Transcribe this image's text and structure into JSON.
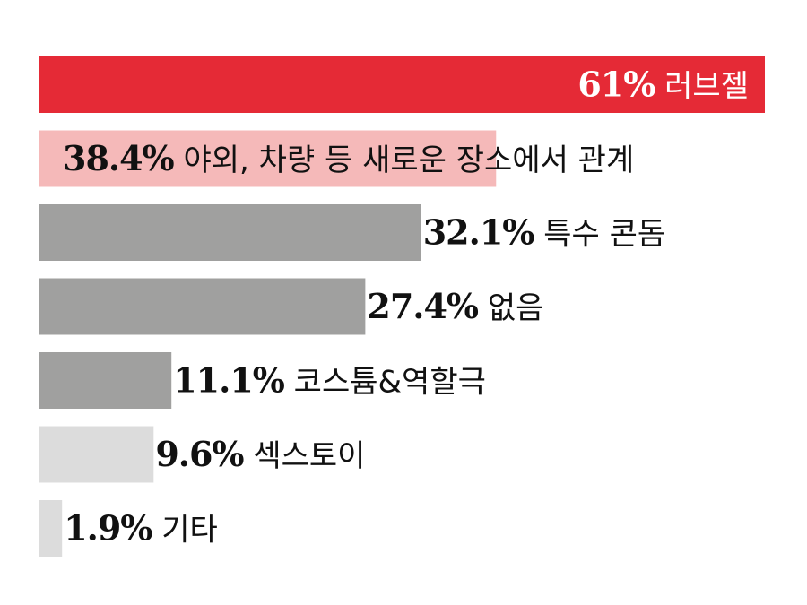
{
  "chart_data": {
    "type": "bar",
    "orientation": "horizontal",
    "xlim": [
      0,
      61
    ],
    "grid": false,
    "legend": "none",
    "bars": [
      {
        "category": "러브젤",
        "value": 61,
        "value_label": "61%",
        "color": "#e52a36",
        "text_color": "#ffffff",
        "label_position": "inside-end"
      },
      {
        "category": "야외, 차량 등 새로운 장소에서 관계",
        "value": 38.4,
        "value_label": "38.4%",
        "color": "#f5b9b9",
        "text_color": "#111111",
        "label_position": "overlay-start"
      },
      {
        "category": "특수 콘돔",
        "value": 32.1,
        "value_label": "32.1%",
        "color": "#a0a09f",
        "text_color": "#111111",
        "label_position": "outside-end"
      },
      {
        "category": "없음",
        "value": 27.4,
        "value_label": "27.4%",
        "color": "#a0a09f",
        "text_color": "#111111",
        "label_position": "outside-end"
      },
      {
        "category": "코스튬&역할극",
        "value": 11.1,
        "value_label": "11.1%",
        "color": "#a0a09f",
        "text_color": "#111111",
        "label_position": "outside-end"
      },
      {
        "category": "섹스토이",
        "value": 9.6,
        "value_label": "9.6%",
        "color": "#dcdcdc",
        "text_color": "#111111",
        "label_position": "outside-end"
      },
      {
        "category": "기타",
        "value": 1.9,
        "value_label": "1.9%",
        "color": "#dcdcdc",
        "text_color": "#111111",
        "label_position": "outside-end"
      }
    ]
  }
}
